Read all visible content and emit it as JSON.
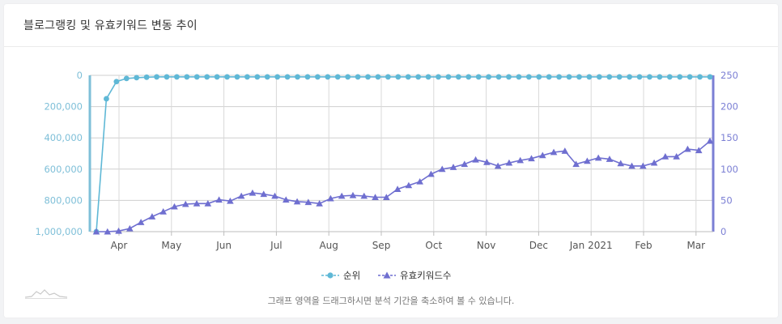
{
  "card": {
    "title": "블로그랭킹 및 유효키워드 변동 추이",
    "hint": "그래프 영역을 드래그하시면 분석 기간을 축소하여 볼 수 있습니다."
  },
  "chart_data": {
    "type": "line",
    "x_tick_labels": [
      "Apr",
      "May",
      "Jun",
      "Jul",
      "Aug",
      "Sep",
      "Oct",
      "Nov",
      "Dec",
      "Jan 2021",
      "Feb",
      "Mar"
    ],
    "left_axis": {
      "min": 0,
      "max": 1000000,
      "reversed": true,
      "tick_labels": [
        "0",
        "200,000",
        "400,000",
        "600,000",
        "800,000",
        "1,000,000"
      ],
      "color": "#7ebfd8"
    },
    "right_axis": {
      "min": 0,
      "max": 250,
      "tick_labels": [
        "0",
        "50",
        "100",
        "150",
        "200",
        "250"
      ],
      "color": "#7b7fd4"
    },
    "grid": true,
    "legend": "bottom-center",
    "series": [
      {
        "name": "순위",
        "axis": "left",
        "color": "#5fb8d6",
        "marker": "circle",
        "values": [
          1000000,
          150000,
          40000,
          20000,
          15000,
          12000,
          10000,
          10000,
          10000,
          10000,
          10000,
          10000,
          10000,
          10000,
          10000,
          10000,
          10000,
          10000,
          10000,
          10000,
          10000,
          10000,
          10000,
          10000,
          10000,
          10000,
          10000,
          10000,
          10000,
          10000,
          10000,
          10000,
          10000,
          10000,
          10000,
          10000,
          10000,
          10000,
          10000,
          10000,
          10000,
          10000,
          10000,
          10000,
          10000,
          10000,
          10000,
          10000,
          10000,
          10000,
          10000,
          10000,
          10000,
          10000,
          10000,
          10000,
          10000,
          10000,
          10000,
          10000,
          10000,
          10000
        ]
      },
      {
        "name": "유효키워드수",
        "axis": "right",
        "color": "#6f6fd0",
        "marker": "triangle",
        "values": [
          0,
          0,
          1,
          5,
          15,
          24,
          32,
          40,
          44,
          45,
          45,
          51,
          49,
          57,
          62,
          60,
          57,
          51,
          48,
          47,
          45,
          53,
          57,
          58,
          57,
          55,
          55,
          68,
          74,
          80,
          92,
          100,
          103,
          108,
          115,
          111,
          105,
          110,
          114,
          117,
          122,
          127,
          129,
          108,
          113,
          118,
          116,
          109,
          105,
          105,
          110,
          120,
          120,
          132,
          130,
          145
        ]
      }
    ]
  }
}
